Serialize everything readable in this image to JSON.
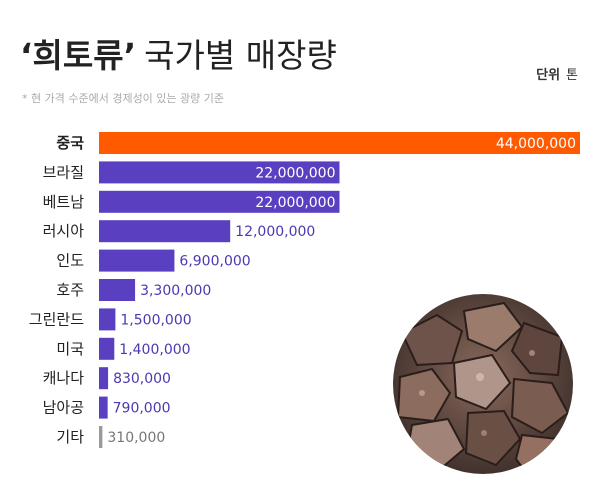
{
  "header": {
    "title_bold": "‘희토류’",
    "title_rest": "국가별 매장량",
    "unit_label": "단위",
    "unit_value": "톤",
    "note": "* 현 가격 수준에서 경제성이 있는 광량 기준"
  },
  "colors": {
    "highlight": "#ff5a00",
    "bar": "#5a3fc0",
    "label_highlight": "#ffffff",
    "value_inside": "#ffffff",
    "value_outside": "#4a3ab0",
    "value_other": "#777777"
  },
  "chart_data": {
    "type": "bar",
    "orientation": "horizontal",
    "title": "‘희토류’ 국가별 매장량",
    "unit": "톤",
    "categories": [
      "중국",
      "브라질",
      "베트남",
      "러시아",
      "인도",
      "호주",
      "그린란드",
      "미국",
      "캐나다",
      "남아공",
      "기타"
    ],
    "values": [
      44000000,
      22000000,
      22000000,
      12000000,
      6900000,
      3300000,
      1500000,
      1400000,
      830000,
      790000,
      310000
    ],
    "value_labels": [
      "44,000,000",
      "22,000,000",
      "22,000,000",
      "12,000,000",
      "6,900,000",
      "3,300,000",
      "1,500,000",
      "1,400,000",
      "830,000",
      "790,000",
      "310,000"
    ],
    "highlight_category": "중국",
    "other_category": "기타",
    "grid": false,
    "legend": "none"
  },
  "image": {
    "alt": "rare earth ore rocks",
    "icon": "rock-pile-photo"
  }
}
